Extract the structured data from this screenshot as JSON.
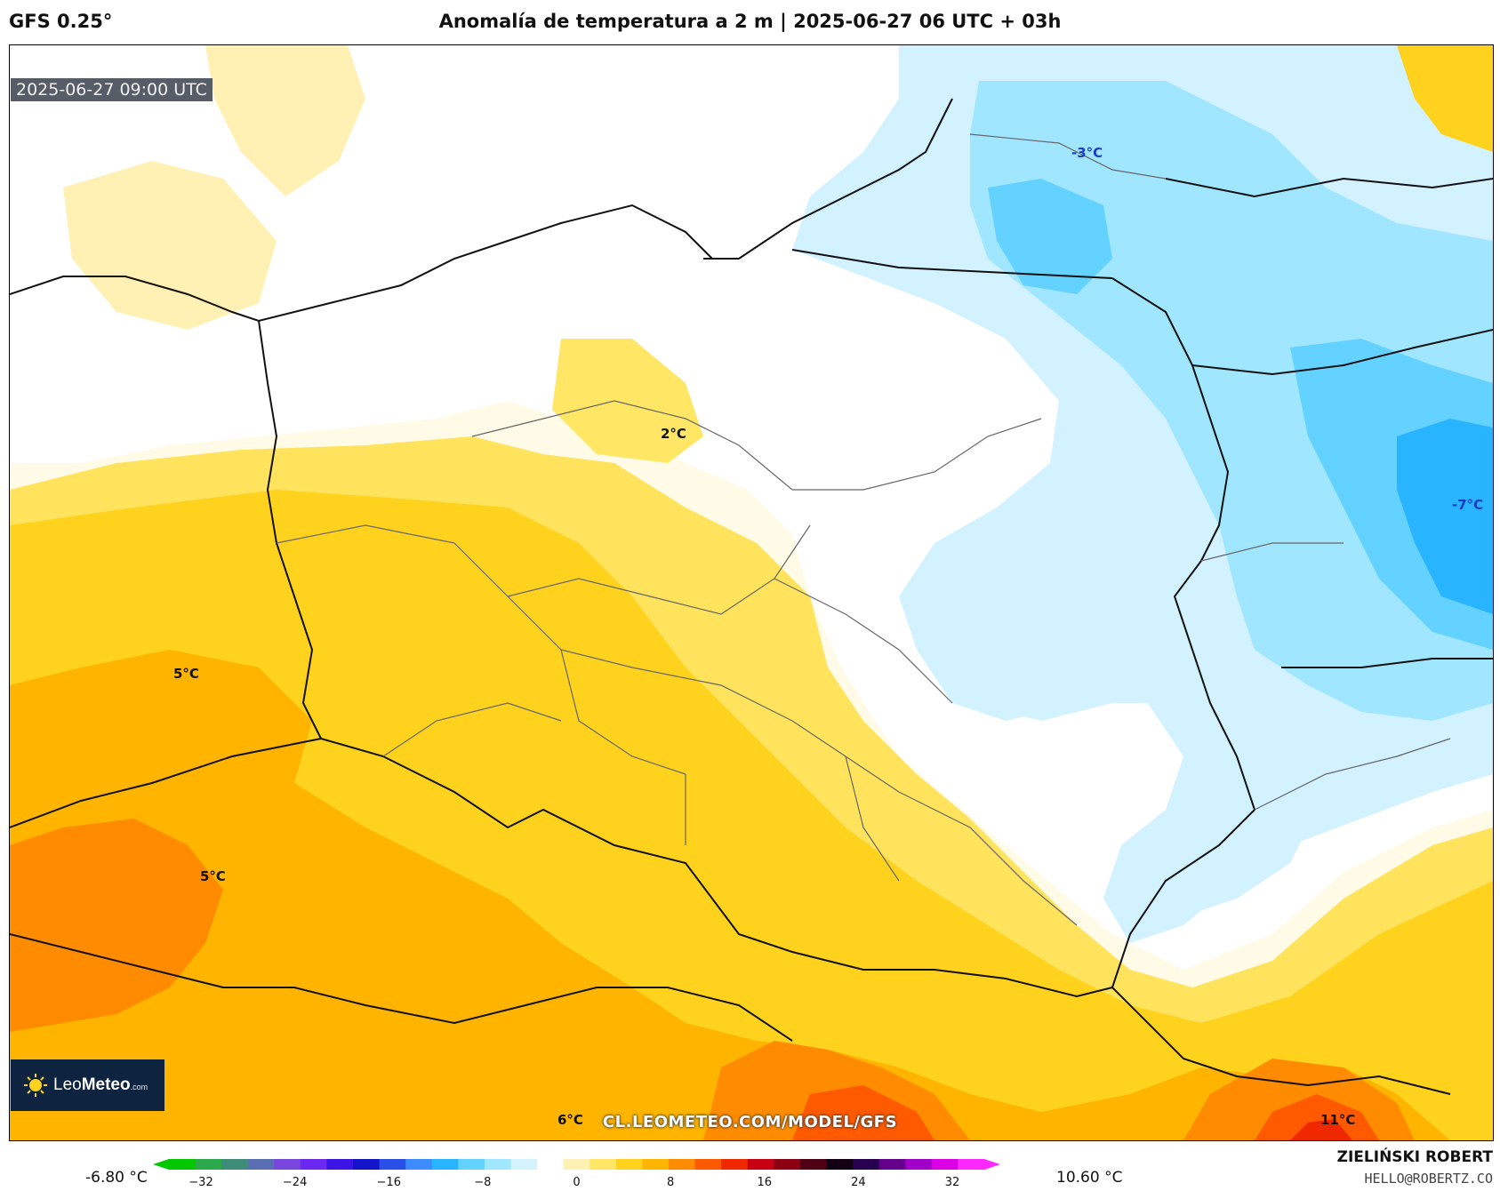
{
  "header": {
    "model": "GFS 0.25°",
    "title": "Anomalía de temperatura a 2 m | 2025-06-27 06 UTC + 03h"
  },
  "map": {
    "valid_time": "2025-06-27 09:00 UTC",
    "watermark": "CL.LEOMETEO.COM/MODEL/GFS",
    "logo": {
      "name": "LeoMeteo",
      "prefix": "Leo",
      "bold": "Meteo",
      "suffix": ".com"
    },
    "labels": [
      {
        "id": "label-minus3",
        "text": "-3°C",
        "kind": "cold"
      },
      {
        "id": "label-2",
        "text": "2°C",
        "kind": "warm"
      },
      {
        "id": "label-minus7",
        "text": "-7°C",
        "kind": "cold"
      },
      {
        "id": "label-5a",
        "text": "5°C",
        "kind": "warm"
      },
      {
        "id": "label-5b",
        "text": "5°C",
        "kind": "warm"
      },
      {
        "id": "label-6",
        "text": "6°C",
        "kind": "warm"
      },
      {
        "id": "label-11",
        "text": "11°C",
        "kind": "warm"
      }
    ]
  },
  "colorbar": {
    "min_label": "-6.80 °C",
    "max_label": "10.60 °C",
    "ticks": [
      "−32",
      "−24",
      "−16",
      "−8",
      "0",
      "8",
      "16",
      "24",
      "32"
    ],
    "colors": [
      "#00c800",
      "#2aa84a",
      "#3c8c78",
      "#5a6eb4",
      "#7846dc",
      "#6a28f0",
      "#3c14e6",
      "#1414c8",
      "#2850e6",
      "#3c8cff",
      "#28b4ff",
      "#64d2ff",
      "#a0e6ff",
      "#d2f2ff",
      "#ffffff",
      "#fff0b4",
      "#ffe664",
      "#ffd21e",
      "#ffb400",
      "#ff8c00",
      "#ff5a00",
      "#f02800",
      "#c80014",
      "#8c0014",
      "#500014",
      "#140014",
      "#280050",
      "#64008c",
      "#a000c8",
      "#dc00e6",
      "#ff28ff"
    ]
  },
  "footer": {
    "author": "ZIELIŃSKI ROBERT",
    "email": "HELLO@ROBERTZ.CO"
  }
}
